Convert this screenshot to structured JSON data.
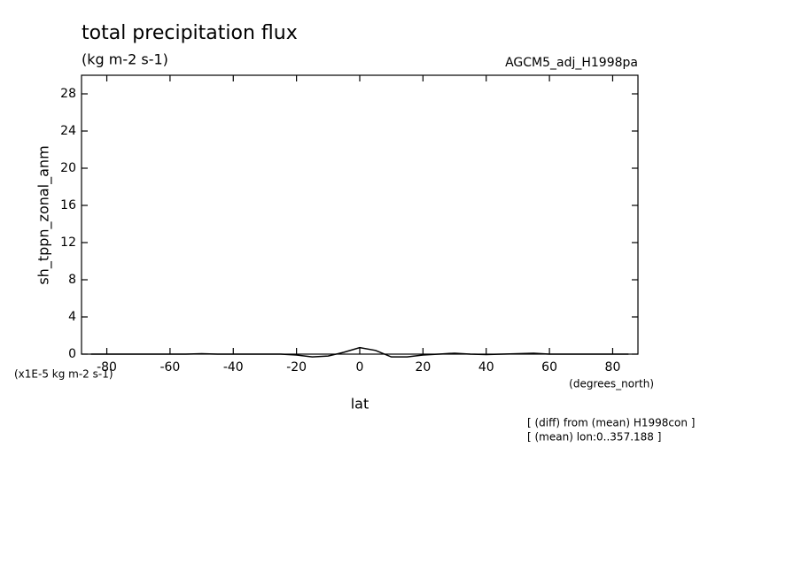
{
  "chart_data": {
    "type": "line",
    "title": "total precipitation flux",
    "subtitle": "(kg m-2 s-1)",
    "run_label": "AGCM5_adj_H1998pa",
    "y_label": "sh_tppn_zonal_anm",
    "y_units": "(x1E-5 kg m-2 s-1)",
    "x_label": "lat",
    "x_units": "(degrees_north)",
    "annotations": [
      "[ (diff) from (mean) H1998con ]",
      "[ (mean) lon:0..357.188 ]"
    ],
    "x": [
      -85,
      -80,
      -75,
      -70,
      -65,
      -60,
      -55,
      -50,
      -45,
      -40,
      -35,
      -30,
      -25,
      -20,
      -15,
      -10,
      -5,
      0,
      5,
      10,
      15,
      20,
      25,
      30,
      35,
      40,
      45,
      50,
      55,
      60,
      65,
      70,
      75,
      80,
      85
    ],
    "series": [
      {
        "name": "sh_tppn_zonal_anm",
        "color": "#000000",
        "values": [
          0,
          0,
          0,
          0,
          0,
          0,
          0,
          0.05,
          0,
          0,
          0,
          0,
          0,
          -0.1,
          -0.3,
          -0.2,
          0.2,
          0.7,
          0.4,
          -0.3,
          -0.3,
          -0.1,
          0,
          0.1,
          0,
          -0.05,
          0,
          0.05,
          0.1,
          0,
          0,
          0,
          0,
          0,
          0
        ]
      }
    ],
    "xlim": [
      -88,
      88
    ],
    "ylim": [
      0,
      30
    ],
    "xticks": [
      -80,
      -60,
      -40,
      -20,
      0,
      20,
      40,
      60,
      80
    ],
    "yticks": [
      0,
      4,
      8,
      12,
      16,
      20,
      24,
      28
    ]
  }
}
